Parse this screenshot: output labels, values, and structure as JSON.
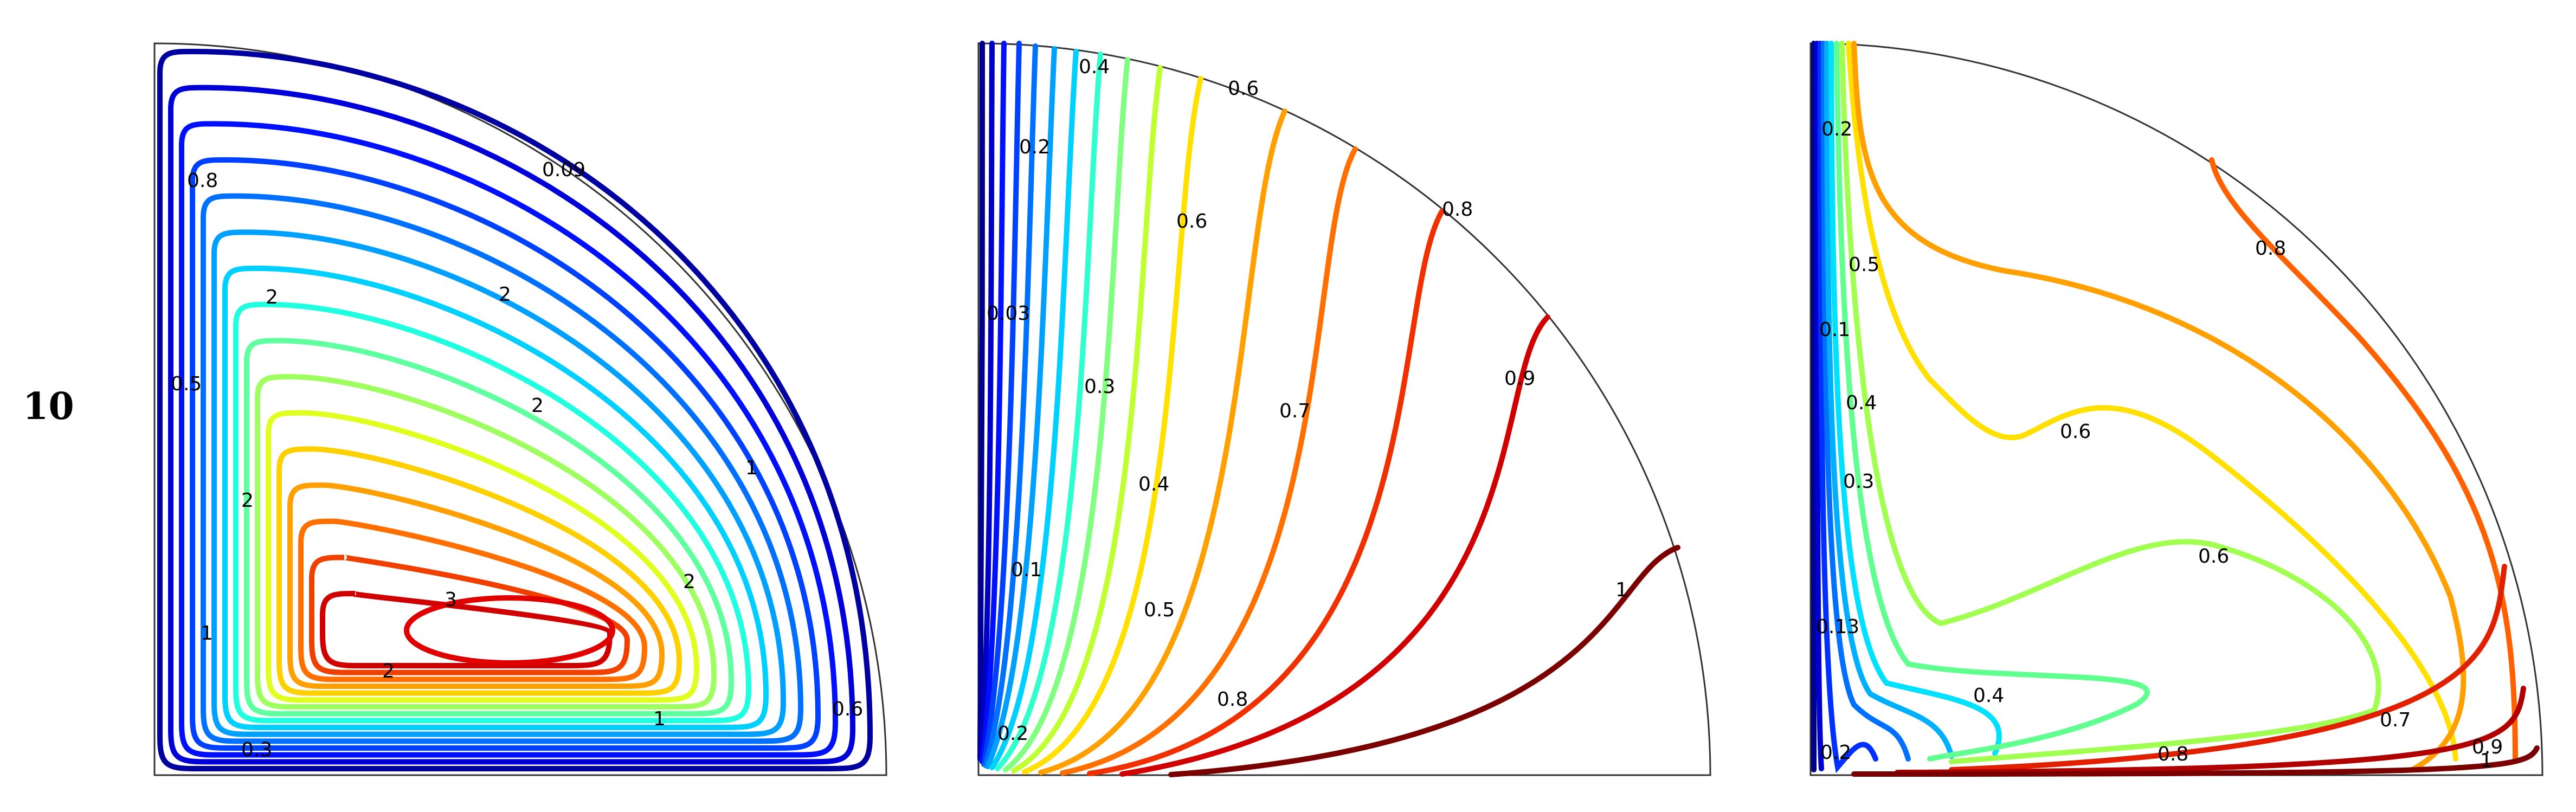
{
  "row_label": "10",
  "colormap": "jet",
  "panels": [
    {
      "id": "panel-1",
      "contour_labels": [
        "0.09",
        "0.8",
        "2",
        "2",
        "2",
        "0.5",
        "2",
        "1",
        "1",
        "2",
        "3",
        "2",
        "1",
        "0.6",
        "0.3"
      ]
    },
    {
      "id": "panel-2",
      "contour_labels": [
        "0.4",
        "0.6",
        "0.2",
        "0.6",
        "0.8",
        "0.03",
        "0.3",
        "0.7",
        "0.9",
        "0.4",
        "0.1",
        "0.5",
        "1",
        "0.8",
        "0.2"
      ]
    },
    {
      "id": "panel-3",
      "contour_labels": [
        "0.2",
        "0.8",
        "0.5",
        "0.1",
        "0.4",
        "0.6",
        "0.3",
        "0.6",
        "0.13",
        "0.4",
        "0.7",
        "0.2",
        "0.8",
        "0.9",
        "1"
      ]
    }
  ]
}
